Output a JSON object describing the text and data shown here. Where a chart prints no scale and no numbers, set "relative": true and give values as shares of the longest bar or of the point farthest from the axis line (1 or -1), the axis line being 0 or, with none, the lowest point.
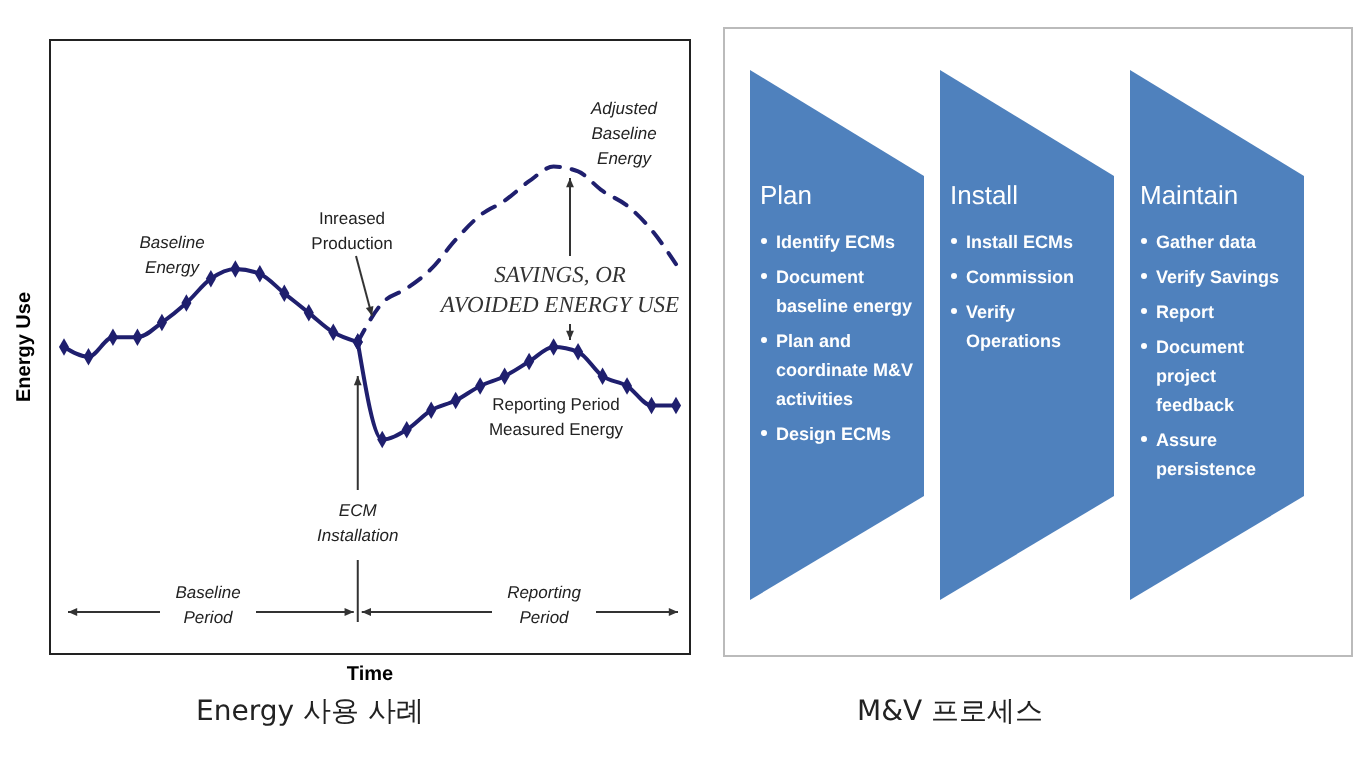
{
  "chart_data": [
    {
      "type": "line",
      "title": "Energy 사용 사례",
      "xlabel": "Time",
      "ylabel": "Energy Use",
      "relative": true,
      "grid": false,
      "categories": [
        null,
        null,
        null,
        null,
        null,
        null,
        null,
        null,
        null,
        null,
        null,
        null,
        null,
        null,
        null,
        null,
        null,
        null,
        null,
        null,
        null,
        null,
        null,
        null,
        null,
        null
      ],
      "series": [
        {
          "name": "Baseline Energy",
          "color": "#1f1f6e",
          "marker": "diamond",
          "line_style": "solid",
          "values": [
            0.63,
            0.61,
            0.65,
            0.65,
            0.68,
            0.72,
            0.77,
            0.79,
            0.78,
            0.74,
            0.7,
            0.66,
            0.64,
            null,
            null,
            null,
            null,
            null,
            null,
            null,
            null,
            null,
            null,
            null,
            null,
            null
          ]
        },
        {
          "name": "Reporting Period Measured Energy",
          "color": "#1f1f6e",
          "marker": "diamond",
          "line_style": "solid",
          "values": [
            null,
            null,
            null,
            null,
            null,
            null,
            null,
            null,
            null,
            null,
            null,
            null,
            0.64,
            0.44,
            0.46,
            0.5,
            0.52,
            0.55,
            0.57,
            0.6,
            0.63,
            0.62,
            0.57,
            0.55,
            0.51,
            0.51
          ]
        },
        {
          "name": "Adjusted Baseline Energy",
          "color": "#1f1f6e",
          "marker": "none",
          "line_style": "dashed",
          "values": [
            null,
            null,
            null,
            null,
            null,
            null,
            null,
            null,
            null,
            null,
            null,
            null,
            0.64,
            0.72,
            0.75,
            0.79,
            0.85,
            0.9,
            0.93,
            0.97,
            1.0,
            0.99,
            0.95,
            0.92,
            0.87,
            0.8
          ]
        }
      ],
      "annotations": [
        "Inreased Production",
        "SAVINGS, OR AVOIDED ENERGY USE",
        "ECM Installation",
        "Baseline Period",
        "Reporting Period"
      ]
    },
    {
      "type": "other",
      "title": "M&V 프로세스",
      "color": "#4f81bd",
      "categories": [
        "Plan",
        "Install",
        "Maintain"
      ],
      "annotations": [
        {
          "text": "Identify ECMs",
          "x": "Plan"
        },
        {
          "text": "Document baseline energy",
          "x": "Plan"
        },
        {
          "text": "Plan and coordinate M&V activities",
          "x": "Plan"
        },
        {
          "text": "Design ECMs",
          "x": "Plan"
        },
        {
          "text": "Install ECMs",
          "x": "Install"
        },
        {
          "text": "Commission",
          "x": "Install"
        },
        {
          "text": "Verify Operations",
          "x": "Install"
        },
        {
          "text": "Gather data",
          "x": "Maintain"
        },
        {
          "text": "Verify Savings",
          "x": "Maintain"
        },
        {
          "text": "Report",
          "x": "Maintain"
        },
        {
          "text": "Document project feedback",
          "x": "Maintain"
        },
        {
          "text": "Assure persistence",
          "x": "Maintain"
        }
      ]
    }
  ]
}
